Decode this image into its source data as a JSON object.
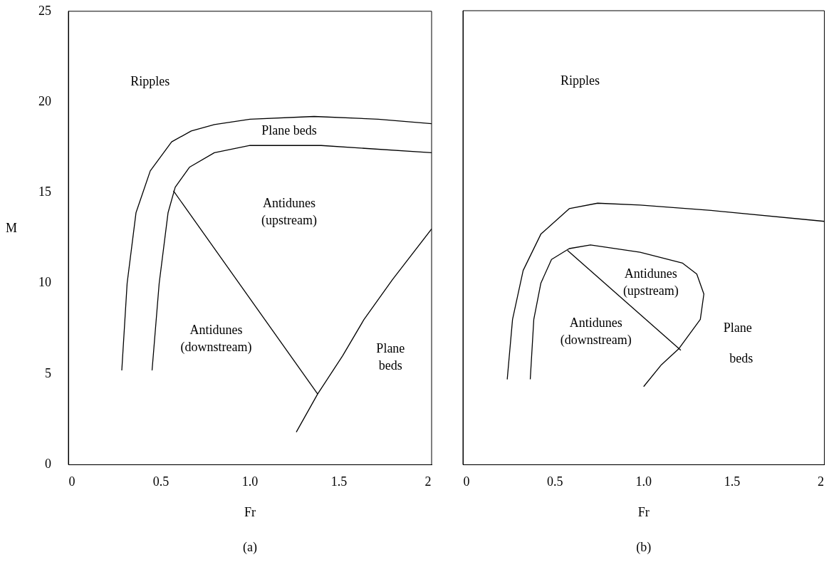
{
  "chart_data": [
    {
      "type": "line",
      "xlabel": "Fr",
      "ylabel": "M",
      "xlim": [
        -0.02,
        2.02
      ],
      "ylim": [
        0,
        25
      ],
      "xticks": [
        0,
        0.5,
        {
          "value": 1,
          "label": "1.0"
        },
        1.5,
        2
      ],
      "yticks": [
        0,
        5,
        10,
        15,
        20,
        25
      ],
      "grid": false,
      "legend": false,
      "marker": "none",
      "line_style": "solid",
      "series": [
        {
          "color": "#000000",
          "x": [
            0.28,
            0.31,
            0.36,
            0.44,
            0.56,
            0.67,
            0.8,
            1.0,
            1.36,
            1.72,
            2.02
          ],
          "values": [
            5.2,
            10.0,
            13.9,
            16.2,
            17.8,
            18.4,
            18.75,
            19.05,
            19.2,
            19.05,
            18.8
          ]
        },
        {
          "color": "#000000",
          "x": [
            0.45,
            0.49,
            0.54,
            0.58,
            0.66,
            0.8,
            1.0,
            1.4,
            2.02
          ],
          "values": [
            5.2,
            10.0,
            13.9,
            15.3,
            16.4,
            17.2,
            17.6,
            17.6,
            17.2
          ]
        },
        {
          "color": "#000000",
          "x": [
            0.57,
            1.38
          ],
          "values": [
            15.1,
            3.9
          ]
        },
        {
          "color": "#000000",
          "x": [
            1.26,
            1.38,
            1.52,
            1.64,
            1.8,
            2.02
          ],
          "values": [
            1.8,
            3.9,
            6.0,
            8.0,
            10.2,
            13.0
          ]
        }
      ],
      "annotations": [
        "Ripples",
        "Plane beds",
        "Antidunes\n(upstream)",
        "Antidunes\n(downstream)",
        "Plane\nbeds",
        "(a)"
      ]
    },
    {
      "type": "line",
      "xlabel": "Fr",
      "xlim": [
        -0.02,
        2.02
      ],
      "ylim": [
        0,
        25
      ],
      "xticks": [
        0,
        0.5,
        {
          "value": 1,
          "label": "1.0"
        },
        1.5,
        2
      ],
      "yticks": [
        0,
        5,
        10,
        15,
        20,
        25
      ],
      "tick_labels": "x",
      "grid": false,
      "legend": false,
      "marker": "none",
      "line_style": "solid",
      "series": [
        {
          "color": "#000000",
          "x": [
            0.23,
            0.26,
            0.32,
            0.42,
            0.58,
            0.74,
            0.98,
            1.38,
            2.02
          ],
          "values": [
            4.7,
            8.0,
            10.7,
            12.7,
            14.1,
            14.4,
            14.3,
            14.0,
            13.4
          ]
        },
        {
          "color": "#000000",
          "x": [
            0.36,
            0.38,
            0.42,
            0.48,
            0.58,
            0.7,
            0.98,
            1.22,
            1.3,
            1.34,
            1.32,
            1.2,
            1.1,
            1.0
          ],
          "values": [
            4.7,
            8.0,
            10.0,
            11.3,
            11.9,
            12.1,
            11.7,
            11.1,
            10.5,
            9.4,
            8.0,
            6.4,
            5.5,
            4.3
          ]
        },
        {
          "color": "#000000",
          "x": [
            0.57,
            1.21
          ],
          "values": [
            11.8,
            6.3
          ]
        }
      ],
      "annotations": [
        "Ripples",
        "Antidunes\n(upstream)",
        "Antidunes\n(downstream)",
        "Plane",
        "beds",
        "(b)"
      ]
    }
  ]
}
